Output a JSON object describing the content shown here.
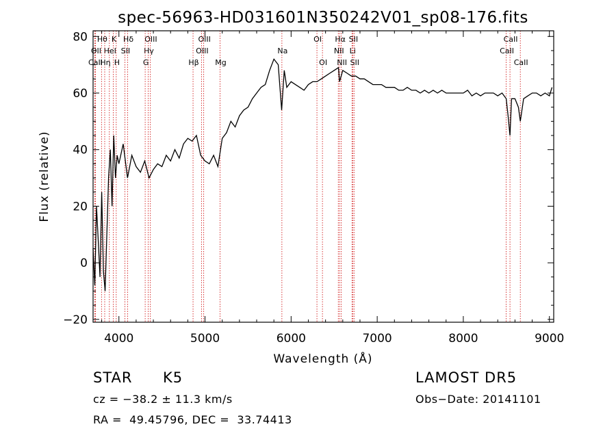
{
  "chart_data": {
    "type": "line",
    "title": "spec-56963-HD031601N350242V01_sp08-176.fits",
    "xlabel": "Wavelength (Å)",
    "ylabel": "Flux (relative)",
    "xlim": [
      3700,
      9050
    ],
    "ylim": [
      -21,
      82
    ],
    "xticks": [
      4000,
      5000,
      6000,
      7000,
      8000,
      9000
    ],
    "yticks": [
      -20,
      0,
      20,
      40,
      60,
      80
    ],
    "grid": false,
    "line_color": "#000000",
    "marker_color": "#cc0000",
    "series": [
      {
        "x": [
          3700,
          3720,
          3740,
          3760,
          3780,
          3800,
          3820,
          3840,
          3860,
          3880,
          3900,
          3920,
          3940,
          3960,
          3980,
          4000,
          4050,
          4100,
          4150,
          4200,
          4250,
          4300,
          4350,
          4400,
          4450,
          4500,
          4550,
          4600,
          4650,
          4700,
          4750,
          4800,
          4850,
          4900,
          4950,
          5000,
          5050,
          5100,
          5150,
          5200,
          5250,
          5300,
          5350,
          5400,
          5450,
          5500,
          5550,
          5600,
          5650,
          5700,
          5750,
          5800,
          5850,
          5890,
          5920,
          5950,
          6000,
          6050,
          6100,
          6150,
          6200,
          6250,
          6300,
          6350,
          6400,
          6450,
          6500,
          6550,
          6563,
          6600,
          6650,
          6700,
          6750,
          6800,
          6850,
          6900,
          6950,
          7000,
          7050,
          7100,
          7150,
          7200,
          7250,
          7300,
          7350,
          7400,
          7450,
          7500,
          7550,
          7600,
          7650,
          7700,
          7750,
          7800,
          7850,
          7900,
          7950,
          8000,
          8050,
          8100,
          8150,
          8200,
          8250,
          8300,
          8350,
          8400,
          8450,
          8498,
          8520,
          8542,
          8560,
          8600,
          8640,
          8662,
          8700,
          8750,
          8800,
          8850,
          8900,
          8950,
          9000,
          9030
        ],
        "y": [
          5,
          -8,
          20,
          8,
          -5,
          25,
          -3,
          -10,
          10,
          30,
          40,
          20,
          45,
          30,
          38,
          35,
          42,
          30,
          38,
          34,
          32,
          36,
          30,
          33,
          35,
          34,
          38,
          36,
          40,
          37,
          42,
          44,
          43,
          45,
          38,
          36,
          35,
          38,
          34,
          44,
          46,
          50,
          48,
          52,
          54,
          55,
          58,
          60,
          62,
          63,
          68,
          72,
          70,
          54,
          68,
          62,
          64,
          63,
          62,
          61,
          63,
          64,
          64,
          65,
          66,
          67,
          68,
          69,
          64,
          68,
          67,
          66,
          66,
          65,
          65,
          64,
          63,
          63,
          63,
          62,
          62,
          62,
          61,
          61,
          62,
          61,
          61,
          60,
          61,
          60,
          61,
          60,
          61,
          60,
          60,
          60,
          60,
          60,
          61,
          59,
          60,
          59,
          60,
          60,
          60,
          59,
          60,
          58,
          52,
          45,
          58,
          58,
          55,
          50,
          58,
          59,
          60,
          60,
          59,
          60,
          59,
          62
        ]
      }
    ],
    "line_ids": [
      {
        "label": "Hθ",
        "x": 3798,
        "row": 0
      },
      {
        "label": "OII",
        "x": 3727,
        "row": 1
      },
      {
        "label": "CaII",
        "x": 3720,
        "row": 2
      },
      {
        "label": "K",
        "x": 3934,
        "row": 0
      },
      {
        "label": "HeI",
        "x": 3889,
        "row": 1
      },
      {
        "label": "Hη",
        "x": 3835,
        "row": 2
      },
      {
        "label": "H",
        "x": 3969,
        "row": 2
      },
      {
        "label": "Hδ",
        "x": 4102,
        "row": 0
      },
      {
        "label": "SII",
        "x": 4069,
        "row": 1
      },
      {
        "label": "OIII",
        "x": 4363,
        "row": 0
      },
      {
        "label": "Hγ",
        "x": 4340,
        "row": 1
      },
      {
        "label": "G",
        "x": 4305,
        "row": 2
      },
      {
        "label": "Hβ",
        "x": 4861,
        "row": 2
      },
      {
        "label": "OIII",
        "x": 4985,
        "row": 0
      },
      {
        "label": "OIII",
        "x": 4959,
        "row": 1
      },
      {
        "label": "Mg",
        "x": 5175,
        "row": 2
      },
      {
        "label": "Na",
        "x": 5893,
        "row": 1
      },
      {
        "label": "OI",
        "x": 6300,
        "row": 0
      },
      {
        "label": "OI",
        "x": 6364,
        "row": 2
      },
      {
        "label": "Hα",
        "x": 6563,
        "row": 0
      },
      {
        "label": "SII",
        "x": 6716,
        "row": 0
      },
      {
        "label": "NII",
        "x": 6548,
        "row": 1
      },
      {
        "label": "Li",
        "x": 6707,
        "row": 1
      },
      {
        "label": "NII",
        "x": 6583,
        "row": 2
      },
      {
        "label": "SII",
        "x": 6731,
        "row": 2
      },
      {
        "label": "CaII",
        "x": 8542,
        "row": 0
      },
      {
        "label": "CaII",
        "x": 8498,
        "row": 1
      },
      {
        "label": "CaII",
        "x": 8662,
        "row": 2
      }
    ]
  },
  "info": {
    "class": "STAR",
    "subclass": "K5",
    "survey": "LAMOST DR5",
    "cz": "cz = −38.2 ± 11.3 km/s",
    "obs_date": "Obs−Date: 20141101",
    "coords": "RA =  49.45796, DEC =  33.74413"
  }
}
